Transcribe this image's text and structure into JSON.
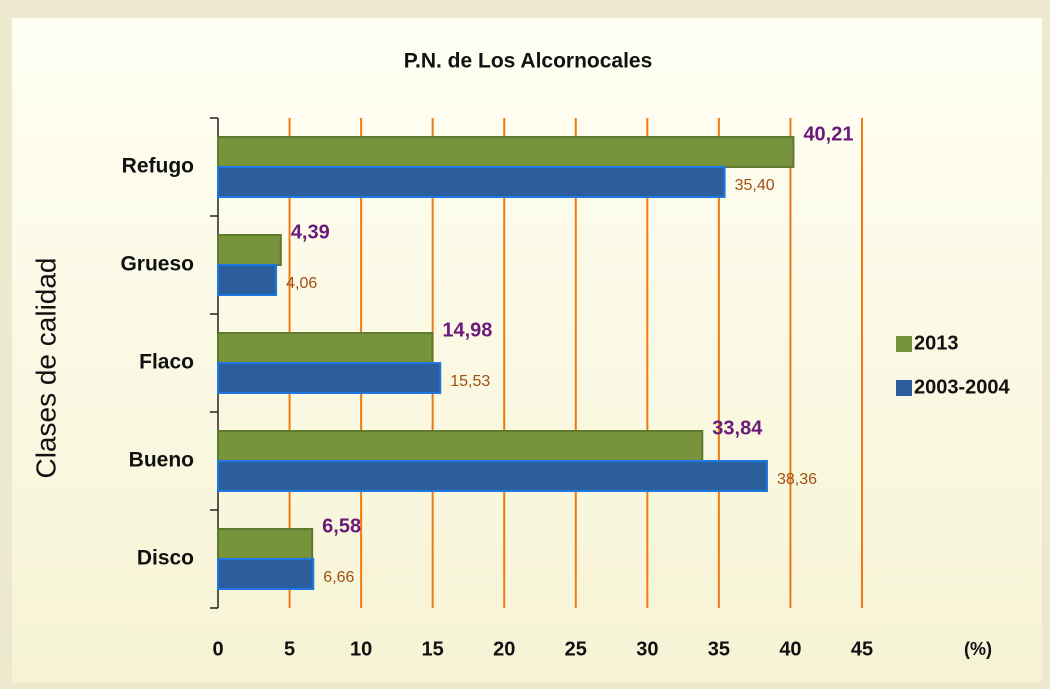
{
  "chart_data": {
    "type": "hbar",
    "title": "P.N. de Los Alcornocales",
    "y_label": "Clases de calidad",
    "x_label": "(%)",
    "categories": [
      "Refugo",
      "Grueso",
      "Flaco",
      "Bueno",
      "Disco"
    ],
    "series": [
      {
        "name": "2013",
        "color": "#77933c",
        "values": [
          40.21,
          4.39,
          14.98,
          33.84,
          6.58
        ],
        "value_labels": [
          "40,21",
          "4,39",
          "14,98",
          "33,84",
          "6,58"
        ]
      },
      {
        "name": "2003-2004",
        "color": "#2c5d9c",
        "values": [
          35.4,
          4.06,
          15.53,
          38.36,
          6.66
        ],
        "value_labels": [
          "35,40",
          "4,06",
          "15,53",
          "38,36",
          "6,66"
        ]
      }
    ],
    "xlim": [
      0,
      45
    ],
    "xticks": [
      0,
      5,
      10,
      15,
      20,
      25,
      30,
      35,
      40,
      45
    ],
    "grid": true,
    "legend": "right"
  }
}
